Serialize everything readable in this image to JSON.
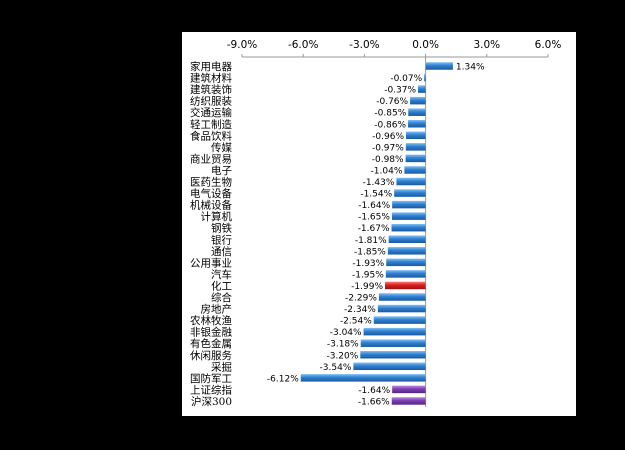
{
  "chart_data": {
    "type": "bar",
    "orientation": "horizontal",
    "title": "",
    "xlabel": "",
    "ylabel": "",
    "xlim": [
      -9,
      6
    ],
    "x_ticks": [
      "-9.0%",
      "-6.0%",
      "-3.0%",
      "0.0%",
      "3.0%",
      "6.0%"
    ],
    "x_tick_values": [
      -9,
      -6,
      -3,
      0,
      3,
      6
    ],
    "x_axis_position": "top",
    "grid": false,
    "legend": "none",
    "categories": [
      "家用电器",
      "建筑材料",
      "建筑装饰",
      "纺织服装",
      "交通运输",
      "轻工制造",
      "食品饮料",
      "传媒",
      "商业贸易",
      "电子",
      "医药生物",
      "电气设备",
      "机械设备",
      "计算机",
      "钢铁",
      "银行",
      "通信",
      "公用事业",
      "汽车",
      "化工",
      "综合",
      "房地产",
      "农林牧渔",
      "非银金融",
      "有色金属",
      "休闲服务",
      "采掘",
      "国防军工",
      "上证综指",
      "沪深300"
    ],
    "values": [
      1.34,
      -0.07,
      -0.37,
      -0.76,
      -0.85,
      -0.86,
      -0.96,
      -0.97,
      -0.98,
      -1.04,
      -1.43,
      -1.54,
      -1.64,
      -1.65,
      -1.67,
      -1.81,
      -1.85,
      -1.93,
      -1.95,
      -1.99,
      -2.29,
      -2.34,
      -2.54,
      -3.04,
      -3.18,
      -3.2,
      -3.54,
      -6.12,
      -1.64,
      -1.66
    ],
    "data_labels": [
      "1.34%",
      "-0.07%",
      "-0.37%",
      "-0.76%",
      "-0.85%",
      "-0.86%",
      "-0.96%",
      "-0.97%",
      "-0.98%",
      "-1.04%",
      "-1.43%",
      "-1.54%",
      "-1.64%",
      "-1.65%",
      "-1.67%",
      "-1.81%",
      "-1.85%",
      "-1.93%",
      "-1.95%",
      "-1.99%",
      "-2.29%",
      "-2.34%",
      "-2.54%",
      "-3.04%",
      "-3.18%",
      "-3.20%",
      "-3.54%",
      "-6.12%",
      "-1.64%",
      "-1.66%"
    ],
    "highlight": {
      "化工": "red",
      "上证综指": "purple",
      "沪深300": "purple"
    },
    "colors": {
      "default_bar": "#2f7fd0",
      "highlight_bar": "#d81e1e",
      "index_bar": "#7a3fb0",
      "background": "#ffffff",
      "outer_background": "#000000",
      "text": "#000000",
      "axis": "#9a9a9a"
    }
  }
}
